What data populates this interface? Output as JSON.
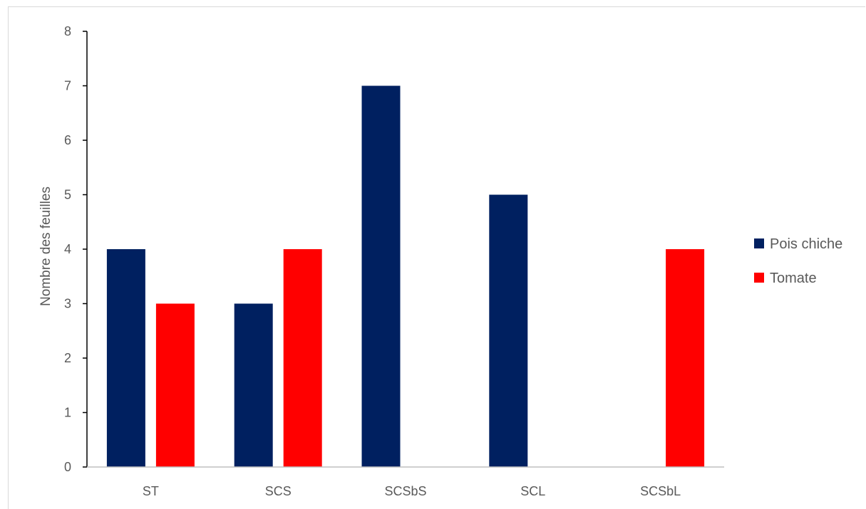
{
  "chart_data": {
    "type": "bar",
    "categories": [
      "ST",
      "SCS",
      "SCSbS",
      "SCL",
      "SCSbL"
    ],
    "series": [
      {
        "name": "Pois chiche",
        "values": [
          4,
          3,
          7,
          5,
          0
        ],
        "color": "#002060"
      },
      {
        "name": "Tomate",
        "values": [
          3,
          4,
          0,
          0,
          4
        ],
        "color": "#ff0000"
      }
    ],
    "title": "",
    "xlabel": "",
    "ylabel": "Nombre des feuilles",
    "ylim": [
      0,
      8
    ],
    "yticks": [
      0,
      1,
      2,
      3,
      4,
      5,
      6,
      7,
      8
    ],
    "grid": false,
    "legend_position": "right"
  }
}
